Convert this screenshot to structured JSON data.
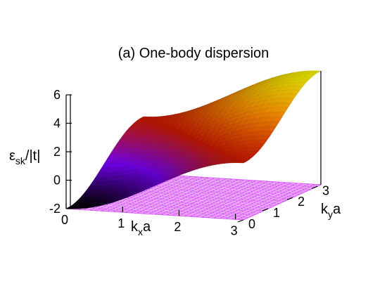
{
  "chart_data": {
    "type": "surface",
    "title": "(a) One-body dispersion",
    "xlabel": {
      "main": "k",
      "sub": "x",
      "suffix": "a"
    },
    "ylabel": {
      "main": "k",
      "sub": "y",
      "suffix": "a"
    },
    "zlabel": {
      "main": "ε",
      "sub": "sk",
      "suffix": "/|t|"
    },
    "xlim": [
      0,
      3.14159
    ],
    "ylim": [
      0,
      3.14159
    ],
    "zlim": [
      -2,
      6
    ],
    "x_ticks": [
      "0",
      "1",
      "2",
      "3"
    ],
    "y_ticks": [
      "0",
      "1",
      "2",
      "3"
    ],
    "z_ticks": [
      "-2",
      "0",
      "2",
      "4",
      "6"
    ],
    "function": "z = 2 - 2*cos(kx*a) - 2*cos(ky*a)",
    "samples": {
      "kx": [
        0,
        0.785,
        1.571,
        2.356,
        3.142
      ],
      "ky": [
        0,
        0.785,
        1.571,
        2.356,
        3.142
      ],
      "z": [
        [
          -2.0,
          -1.414,
          0.0,
          1.414,
          2.0
        ],
        [
          -1.414,
          -0.828,
          0.586,
          2.0,
          2.586
        ],
        [
          0.0,
          0.586,
          2.0,
          3.414,
          4.0
        ],
        [
          1.414,
          2.0,
          3.414,
          4.828,
          5.414
        ],
        [
          2.0,
          2.586,
          4.0,
          5.414,
          6.0
        ]
      ]
    },
    "colormap": [
      "#000000",
      "#7a00ff",
      "#d61a00",
      "#ff8c00",
      "#ffff00"
    ],
    "base_plane_color": "#d94fff",
    "grid": true
  }
}
